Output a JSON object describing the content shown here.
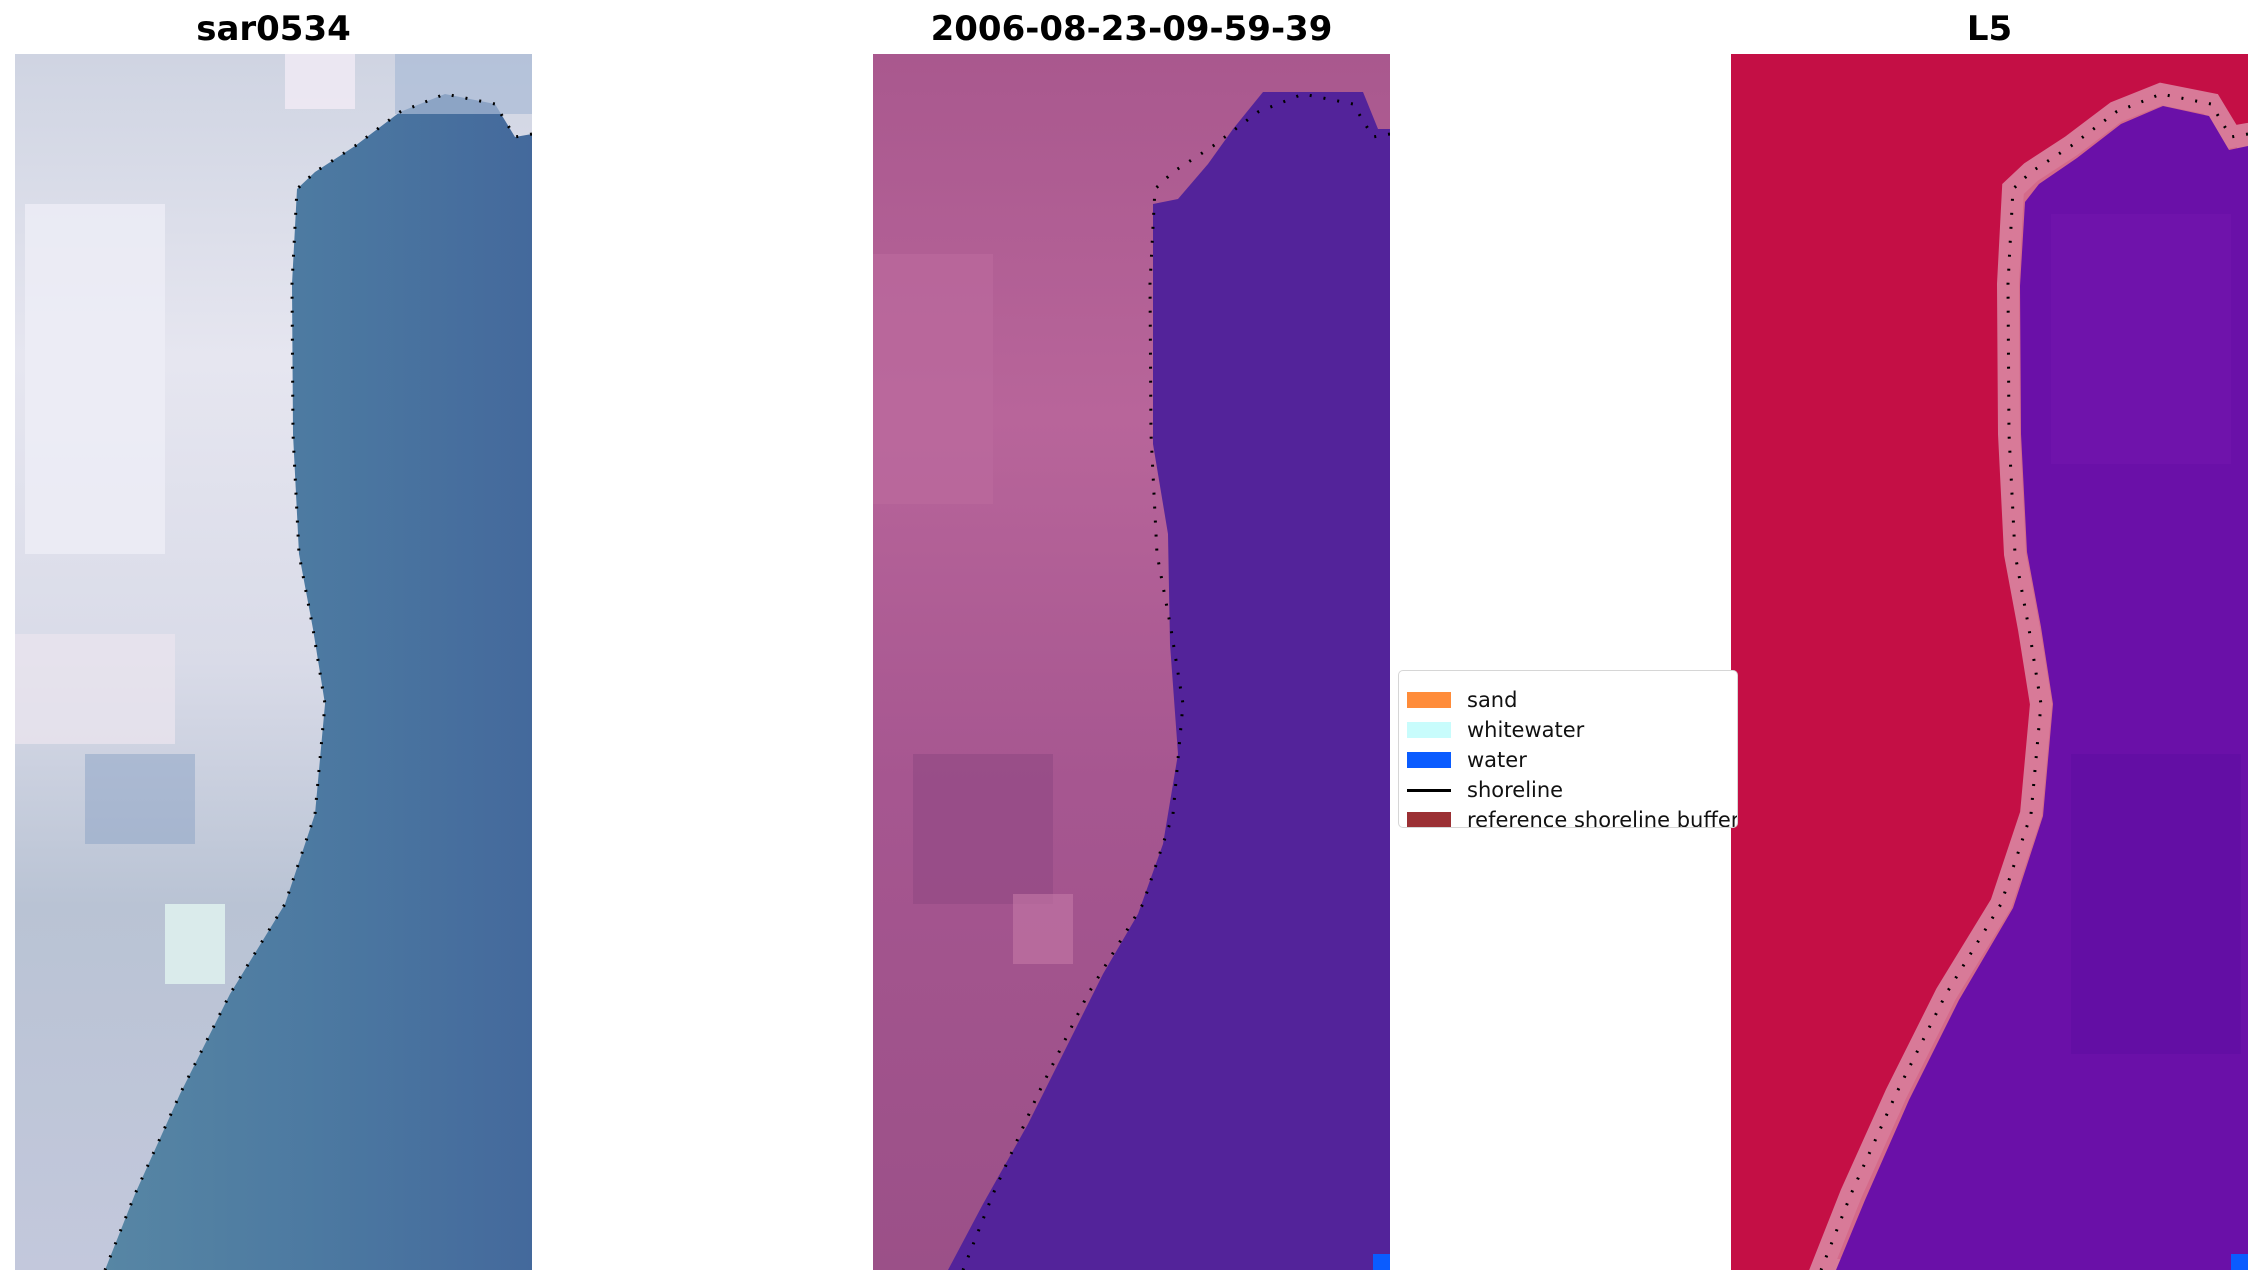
{
  "panels": [
    {
      "title": "sar0534",
      "kind": "rgb-image"
    },
    {
      "title": "2006-08-23-09-59-39",
      "kind": "classification-overlay"
    },
    {
      "title": "L5",
      "kind": "index-image"
    }
  ],
  "legend": {
    "items": [
      {
        "label": "sand",
        "type": "patch",
        "color": "#ff8c3a"
      },
      {
        "label": "whitewater",
        "type": "patch",
        "color": "#c8fcfc"
      },
      {
        "label": "water",
        "type": "patch",
        "color": "#0a5cff"
      },
      {
        "label": "shoreline",
        "type": "line",
        "color": "#000000"
      },
      {
        "label": "reference shoreline buffer",
        "type": "patch",
        "color": "#9b3034"
      }
    ]
  },
  "colors": {
    "rgb_land": "#dcdde8",
    "rgb_water": "#4d76a0",
    "class_land": "#b36294",
    "class_water": "#53239a",
    "index_land": "#c40f45",
    "index_water": "#6a10a8",
    "shoreline_dots": "#000000"
  }
}
